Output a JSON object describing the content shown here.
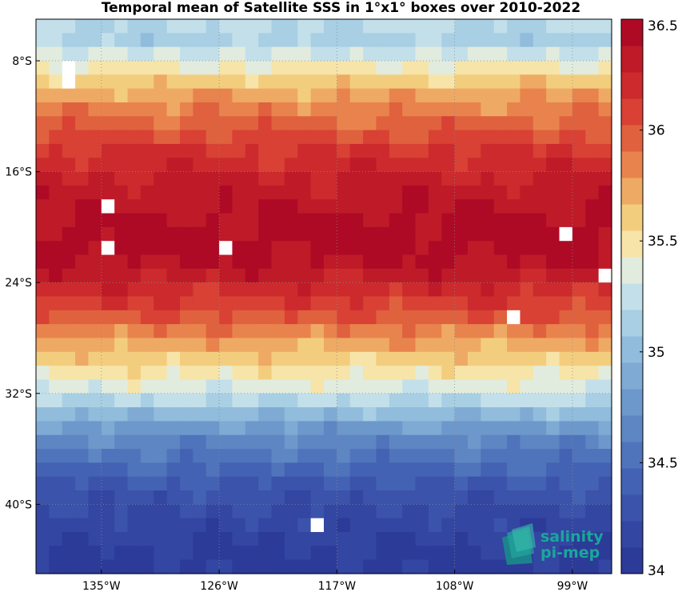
{
  "chart_data": {
    "type": "heatmap",
    "title": "Temporal mean of Satellite SSS in 1°x1° boxes over 2010-2022",
    "x_range": [
      -140,
      -96
    ],
    "y_range": [
      -45,
      -5
    ],
    "x_ticks": [
      {
        "value": -135,
        "label": "135°W"
      },
      {
        "value": -126,
        "label": "126°W"
      },
      {
        "value": -117,
        "label": "117°W"
      },
      {
        "value": -108,
        "label": "108°W"
      },
      {
        "value": -99,
        "label": "99°W"
      }
    ],
    "y_ticks": [
      {
        "value": -8,
        "label": "8°S"
      },
      {
        "value": -16,
        "label": "16°S"
      },
      {
        "value": -24,
        "label": "24°S"
      },
      {
        "value": -32,
        "label": "32°S"
      },
      {
        "value": -40,
        "label": "40°S"
      }
    ],
    "grid": true,
    "colorbar": {
      "min": 34.0,
      "max": 36.5,
      "ticks": [
        {
          "value": 36.5,
          "label": "36.5"
        },
        {
          "value": 36.0,
          "label": "36"
        },
        {
          "value": 35.5,
          "label": "35.5"
        },
        {
          "value": 35.0,
          "label": "35"
        },
        {
          "value": 34.5,
          "label": "34.5"
        },
        {
          "value": 34.0,
          "label": "34"
        }
      ],
      "colors": [
        "#2c3a98",
        "#3346a2",
        "#3b53aa",
        "#4462b3",
        "#5074bb",
        "#5e86c3",
        "#6d98cb",
        "#7eaad4",
        "#91bcdc",
        "#a8cfe3",
        "#c3e0ea",
        "#e2ecde",
        "#f7e4a8",
        "#f3cd7e",
        "#eeaa64",
        "#e9834d",
        "#e0613e",
        "#d84134",
        "#cc2a2c",
        "#bf1a28",
        "#ae0a26"
      ]
    },
    "rows": [
      {
        "lat": -5.5,
        "value": 35.2
      },
      {
        "lat": -6.5,
        "value": 35.15
      },
      {
        "lat": -7.5,
        "value": 35.3
      },
      {
        "lat": -8.5,
        "value": 35.45
      },
      {
        "lat": -9.5,
        "value": 35.6
      },
      {
        "lat": -10.5,
        "value": 35.75
      },
      {
        "lat": -11.5,
        "value": 35.85
      },
      {
        "lat": -12.5,
        "value": 35.95
      },
      {
        "lat": -13.5,
        "value": 36.05
      },
      {
        "lat": -14.5,
        "value": 36.15
      },
      {
        "lat": -15.5,
        "value": 36.2
      },
      {
        "lat": -16.5,
        "value": 36.28
      },
      {
        "lat": -17.5,
        "value": 36.32
      },
      {
        "lat": -18.5,
        "value": 36.36
      },
      {
        "lat": -19.5,
        "value": 36.4
      },
      {
        "lat": -20.5,
        "value": 36.42
      },
      {
        "lat": -21.5,
        "value": 36.42
      },
      {
        "lat": -22.5,
        "value": 36.38
      },
      {
        "lat": -23.5,
        "value": 36.3
      },
      {
        "lat": -24.5,
        "value": 36.2
      },
      {
        "lat": -25.5,
        "value": 36.1
      },
      {
        "lat": -26.5,
        "value": 36.0
      },
      {
        "lat": -27.5,
        "value": 35.85
      },
      {
        "lat": -28.5,
        "value": 35.72
      },
      {
        "lat": -29.5,
        "value": 35.6
      },
      {
        "lat": -30.5,
        "value": 35.48
      },
      {
        "lat": -31.5,
        "value": 35.35
      },
      {
        "lat": -32.5,
        "value": 35.2
      },
      {
        "lat": -33.5,
        "value": 35.0
      },
      {
        "lat": -34.5,
        "value": 34.8
      },
      {
        "lat": -35.5,
        "value": 34.65
      },
      {
        "lat": -36.5,
        "value": 34.55
      },
      {
        "lat": -37.5,
        "value": 34.45
      },
      {
        "lat": -38.5,
        "value": 34.35
      },
      {
        "lat": -39.5,
        "value": 34.28
      },
      {
        "lat": -40.5,
        "value": 34.22
      },
      {
        "lat": -41.5,
        "value": 34.18
      },
      {
        "lat": -42.5,
        "value": 34.14
      },
      {
        "lat": -43.5,
        "value": 34.1
      },
      {
        "lat": -44.5,
        "value": 34.08
      }
    ],
    "missing_cells": [
      {
        "lon": -137.5,
        "lat": -8.5
      },
      {
        "lon": -137.5,
        "lat": -9.5
      },
      {
        "lon": -134.5,
        "lat": -18.5
      },
      {
        "lon": -134.5,
        "lat": -21.5
      },
      {
        "lon": -125.5,
        "lat": -21.5
      },
      {
        "lon": -99.5,
        "lat": -20.5
      },
      {
        "lon": -96.5,
        "lat": -23.5
      },
      {
        "lon": -103.5,
        "lat": -26.5
      },
      {
        "lon": -118.5,
        "lat": -41.5
      }
    ]
  },
  "logo": {
    "line1": "salinity",
    "line2": "pi-mep"
  }
}
